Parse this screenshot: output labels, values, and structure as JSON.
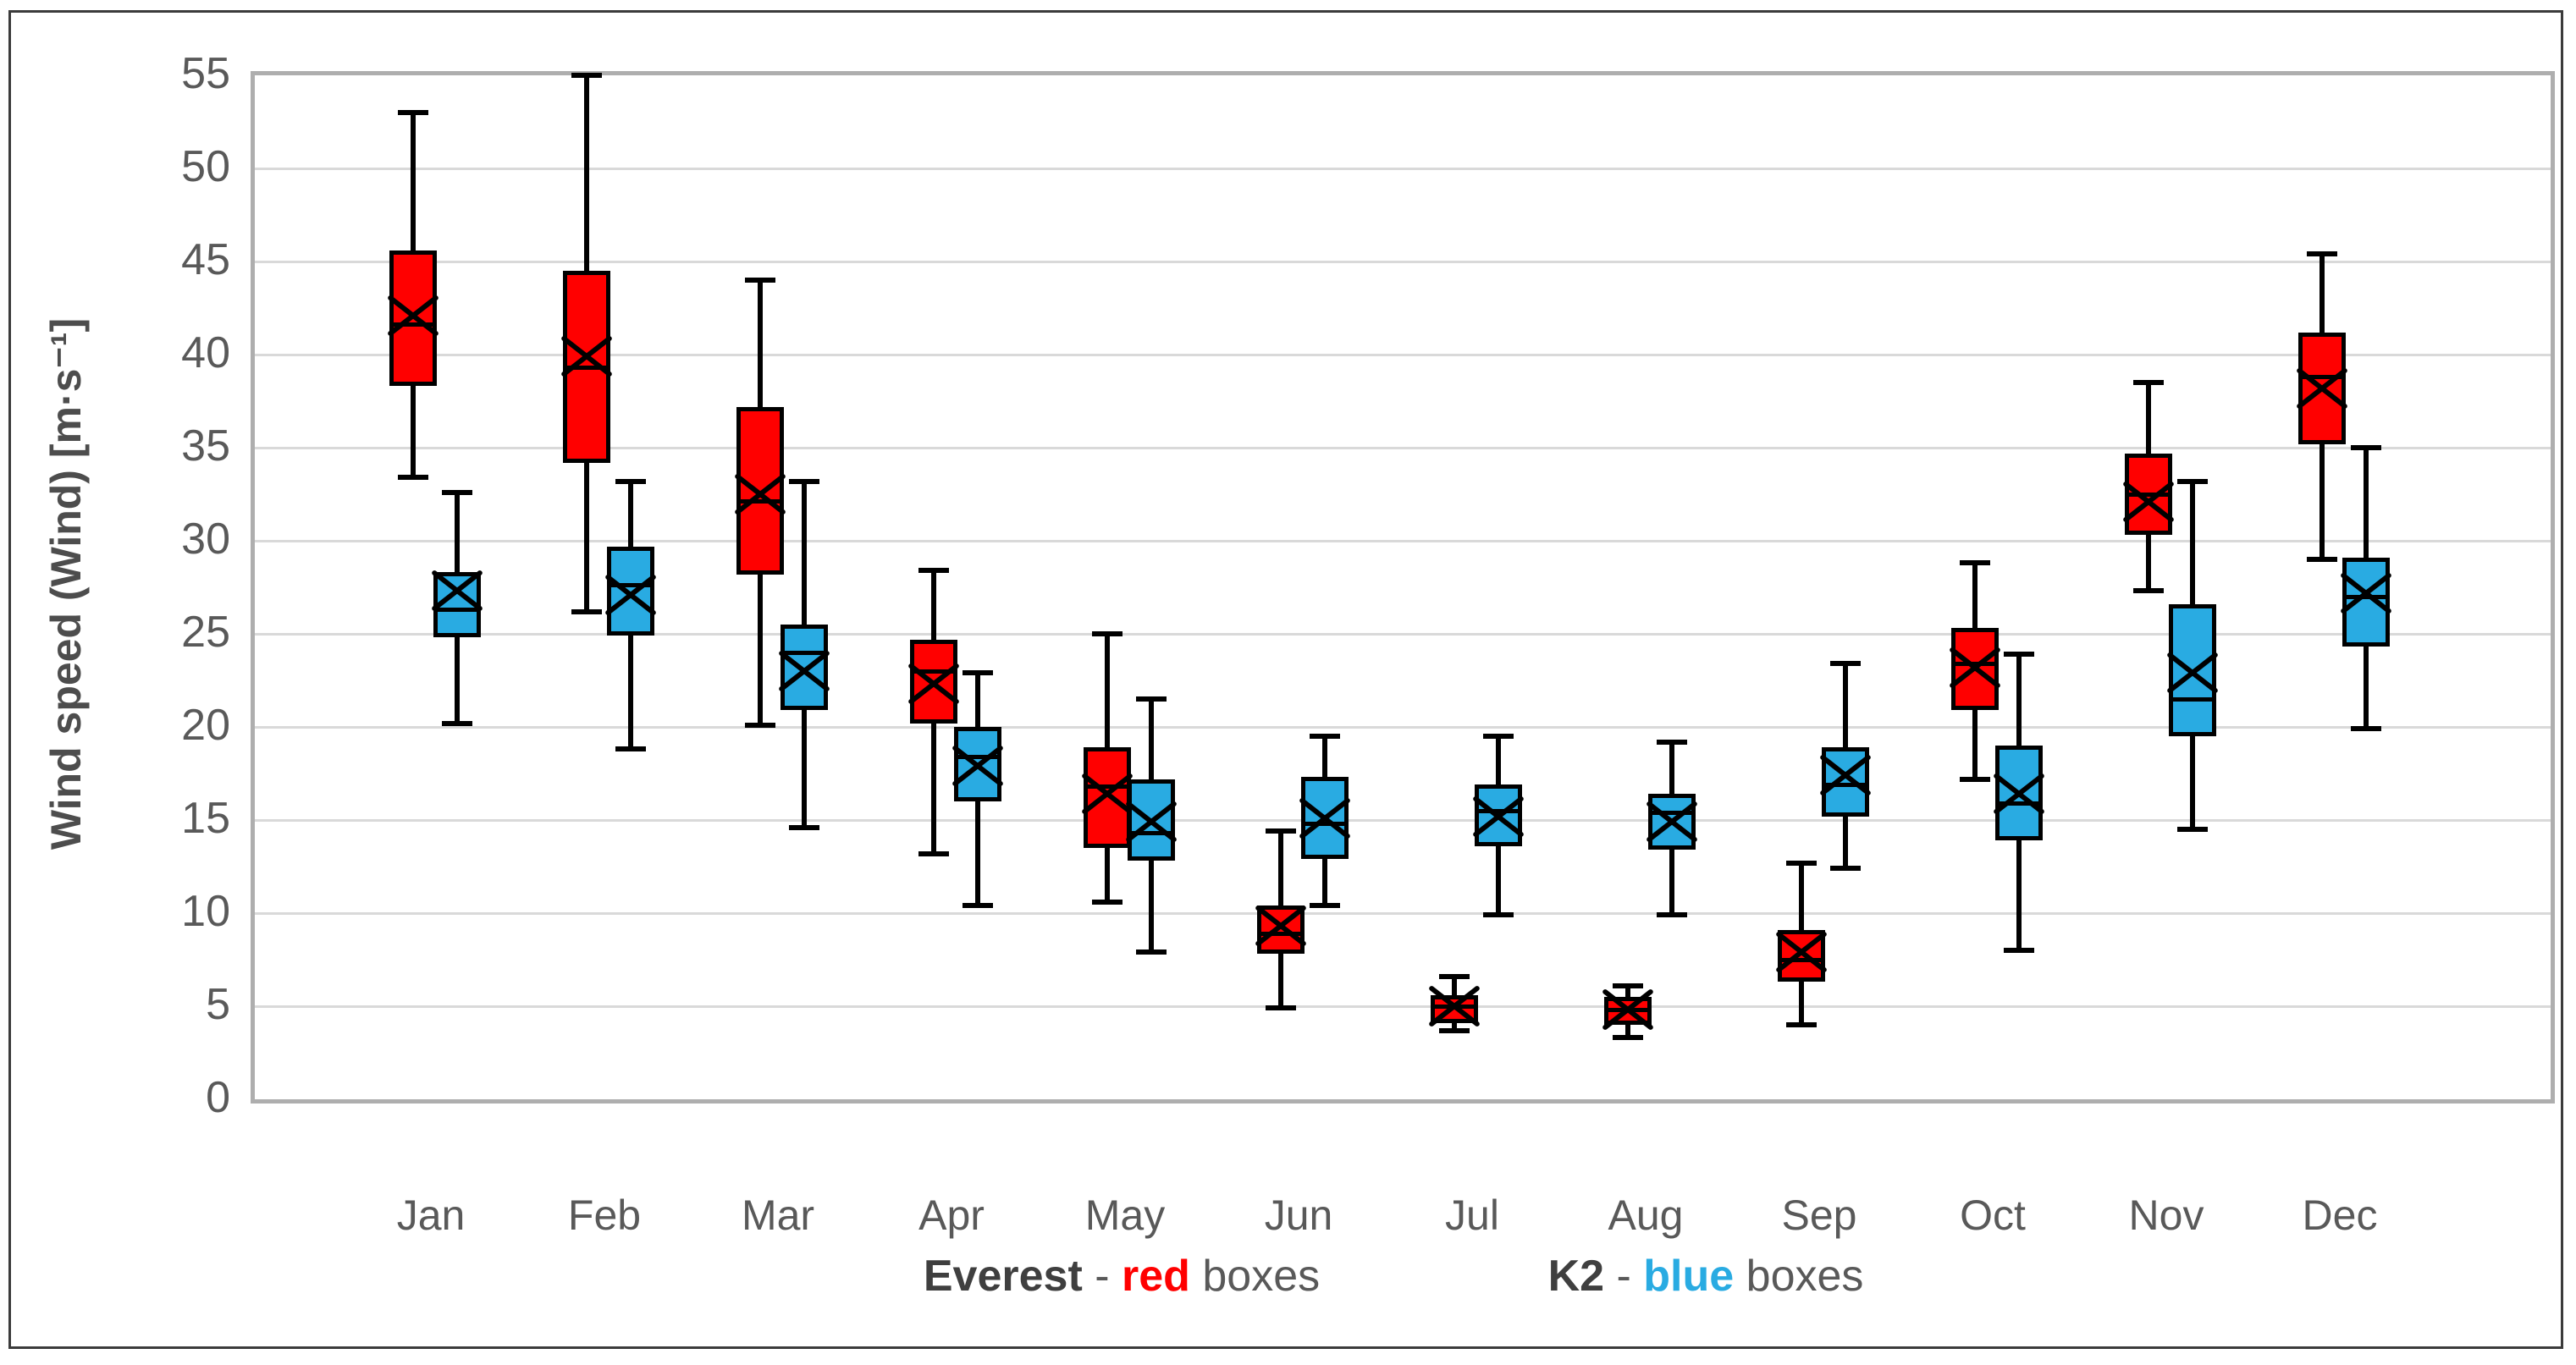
{
  "y_axis": {
    "title": "Wind speed (Wind) [m·s⁻¹]"
  },
  "legend": {
    "everest": {
      "name": "Everest",
      "sep": " - ",
      "color_word": "red",
      "suffix": " boxes",
      "accent": "#ff0000"
    },
    "k2": {
      "name": "K2",
      "sep": " - ",
      "color_word": "blue",
      "suffix": " boxes",
      "accent": "#29abe2"
    }
  },
  "colors": {
    "everest_fill": "#ff0000",
    "k2_fill": "#29abe2",
    "stroke": "#000000",
    "gridline": "#d9d9d9",
    "plot_border": "#aeaeae",
    "text": "#595959"
  },
  "chart_data": {
    "type": "box",
    "title": "",
    "xlabel": "",
    "ylabel": "Wind speed (Wind) [m·s⁻¹]",
    "ylim": [
      0,
      55
    ],
    "ytick_step": 5,
    "yticks": [
      0,
      5,
      10,
      15,
      20,
      25,
      30,
      35,
      40,
      45,
      50,
      55
    ],
    "grid": true,
    "legend_position": "bottom",
    "categories": [
      "Jan",
      "Feb",
      "Mar",
      "Apr",
      "May",
      "Jun",
      "Jul",
      "Aug",
      "Sep",
      "Oct",
      "Nov",
      "Dec"
    ],
    "series": [
      {
        "name": "Everest",
        "color": "#ff0000",
        "legend_text": "Everest - red boxes",
        "boxes": [
          {
            "month": "Jan",
            "min": 33.4,
            "q1": 38.3,
            "median": 41.6,
            "mean": 42.1,
            "q3": 45.6,
            "max": 53.0
          },
          {
            "month": "Feb",
            "min": 26.2,
            "q1": 34.2,
            "median": 39.3,
            "mean": 39.9,
            "q3": 44.5,
            "max": 55.0
          },
          {
            "month": "Mar",
            "min": 20.1,
            "q1": 28.2,
            "median": 32.1,
            "mean": 32.5,
            "q3": 37.2,
            "max": 44.0
          },
          {
            "month": "Apr",
            "min": 13.2,
            "q1": 20.2,
            "median": 23.0,
            "mean": 22.3,
            "q3": 24.7,
            "max": 28.4
          },
          {
            "month": "May",
            "min": 10.6,
            "q1": 13.5,
            "median": 16.8,
            "mean": 16.4,
            "q3": 18.9,
            "max": 25.0
          },
          {
            "month": "Jun",
            "min": 4.9,
            "q1": 7.8,
            "median": 8.9,
            "mean": 9.3,
            "q3": 10.4,
            "max": 14.4
          },
          {
            "month": "Jul",
            "min": 3.7,
            "q1": 4.1,
            "median": 5.0,
            "mean": 5.0,
            "q3": 5.6,
            "max": 6.6
          },
          {
            "month": "Aug",
            "min": 3.3,
            "q1": 4.0,
            "median": 4.8,
            "mean": 4.8,
            "q3": 5.5,
            "max": 6.1
          },
          {
            "month": "Sep",
            "min": 4.0,
            "q1": 6.3,
            "median": 7.5,
            "mean": 7.9,
            "q3": 9.1,
            "max": 12.7
          },
          {
            "month": "Oct",
            "min": 17.2,
            "q1": 20.9,
            "median": 23.4,
            "mean": 23.2,
            "q3": 25.3,
            "max": 28.8
          },
          {
            "month": "Nov",
            "min": 27.3,
            "q1": 30.3,
            "median": 32.5,
            "mean": 32.1,
            "q3": 34.7,
            "max": 38.5
          },
          {
            "month": "Dec",
            "min": 29.0,
            "q1": 35.2,
            "median": 38.8,
            "mean": 38.2,
            "q3": 41.2,
            "max": 45.4
          }
        ]
      },
      {
        "name": "K2",
        "color": "#29abe2",
        "legend_text": "K2 - blue boxes",
        "boxes": [
          {
            "month": "Jan",
            "min": 20.2,
            "q1": 24.8,
            "median": 26.3,
            "mean": 27.3,
            "q3": 28.3,
            "max": 32.6
          },
          {
            "month": "Feb",
            "min": 18.8,
            "q1": 24.9,
            "median": 27.6,
            "mean": 27.1,
            "q3": 29.7,
            "max": 33.2
          },
          {
            "month": "Mar",
            "min": 14.6,
            "q1": 20.9,
            "median": 24.0,
            "mean": 23.0,
            "q3": 25.5,
            "max": 33.2
          },
          {
            "month": "Apr",
            "min": 10.4,
            "q1": 16.0,
            "median": 18.4,
            "mean": 17.9,
            "q3": 20.0,
            "max": 22.9
          },
          {
            "month": "May",
            "min": 7.9,
            "q1": 12.8,
            "median": 14.3,
            "mean": 14.9,
            "q3": 17.2,
            "max": 21.5
          },
          {
            "month": "Jun",
            "min": 10.4,
            "q1": 12.9,
            "median": 14.8,
            "mean": 15.1,
            "q3": 17.3,
            "max": 19.5
          },
          {
            "month": "Jul",
            "min": 9.9,
            "q1": 13.6,
            "median": 15.5,
            "mean": 15.2,
            "q3": 16.9,
            "max": 19.5
          },
          {
            "month": "Aug",
            "min": 9.9,
            "q1": 13.4,
            "median": 15.4,
            "mean": 14.9,
            "q3": 16.4,
            "max": 19.2
          },
          {
            "month": "Sep",
            "min": 12.4,
            "q1": 15.2,
            "median": 16.9,
            "mean": 17.4,
            "q3": 18.9,
            "max": 23.4
          },
          {
            "month": "Oct",
            "min": 8.0,
            "q1": 13.9,
            "median": 15.9,
            "mean": 16.4,
            "q3": 19.0,
            "max": 23.9
          },
          {
            "month": "Nov",
            "min": 14.5,
            "q1": 19.5,
            "median": 21.5,
            "mean": 22.9,
            "q3": 26.6,
            "max": 33.2
          },
          {
            "month": "Dec",
            "min": 19.9,
            "q1": 24.3,
            "median": 27.0,
            "mean": 27.2,
            "q3": 29.1,
            "max": 35.0
          }
        ]
      }
    ]
  }
}
